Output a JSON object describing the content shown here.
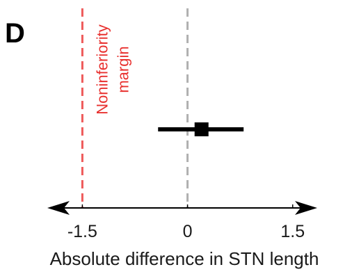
{
  "panel_label": "D",
  "chart_data": {
    "type": "scatter",
    "title": "",
    "xlabel": "Absolute difference in STN length",
    "ylabel": "",
    "xlim": [
      -2.0,
      1.85
    ],
    "xticks": [
      -1.5,
      0,
      1.5
    ],
    "xtick_labels": [
      "-1.5",
      "0",
      "1.5"
    ],
    "grid": false,
    "legend": "none",
    "reference_lines": [
      {
        "x": -1.5,
        "style": "dashed",
        "color": "#ee5a5a"
      },
      {
        "x": 0,
        "style": "dashed",
        "color": "#b0b0b0"
      }
    ],
    "annotation": {
      "lines": [
        "Noninferiority",
        "margin"
      ],
      "color": "#e8312f"
    },
    "point_estimate": {
      "x": 0.2,
      "ci_low": -0.42,
      "ci_high": 0.8
    },
    "colors": {
      "point": "#000000",
      "axis": "#000000"
    }
  }
}
